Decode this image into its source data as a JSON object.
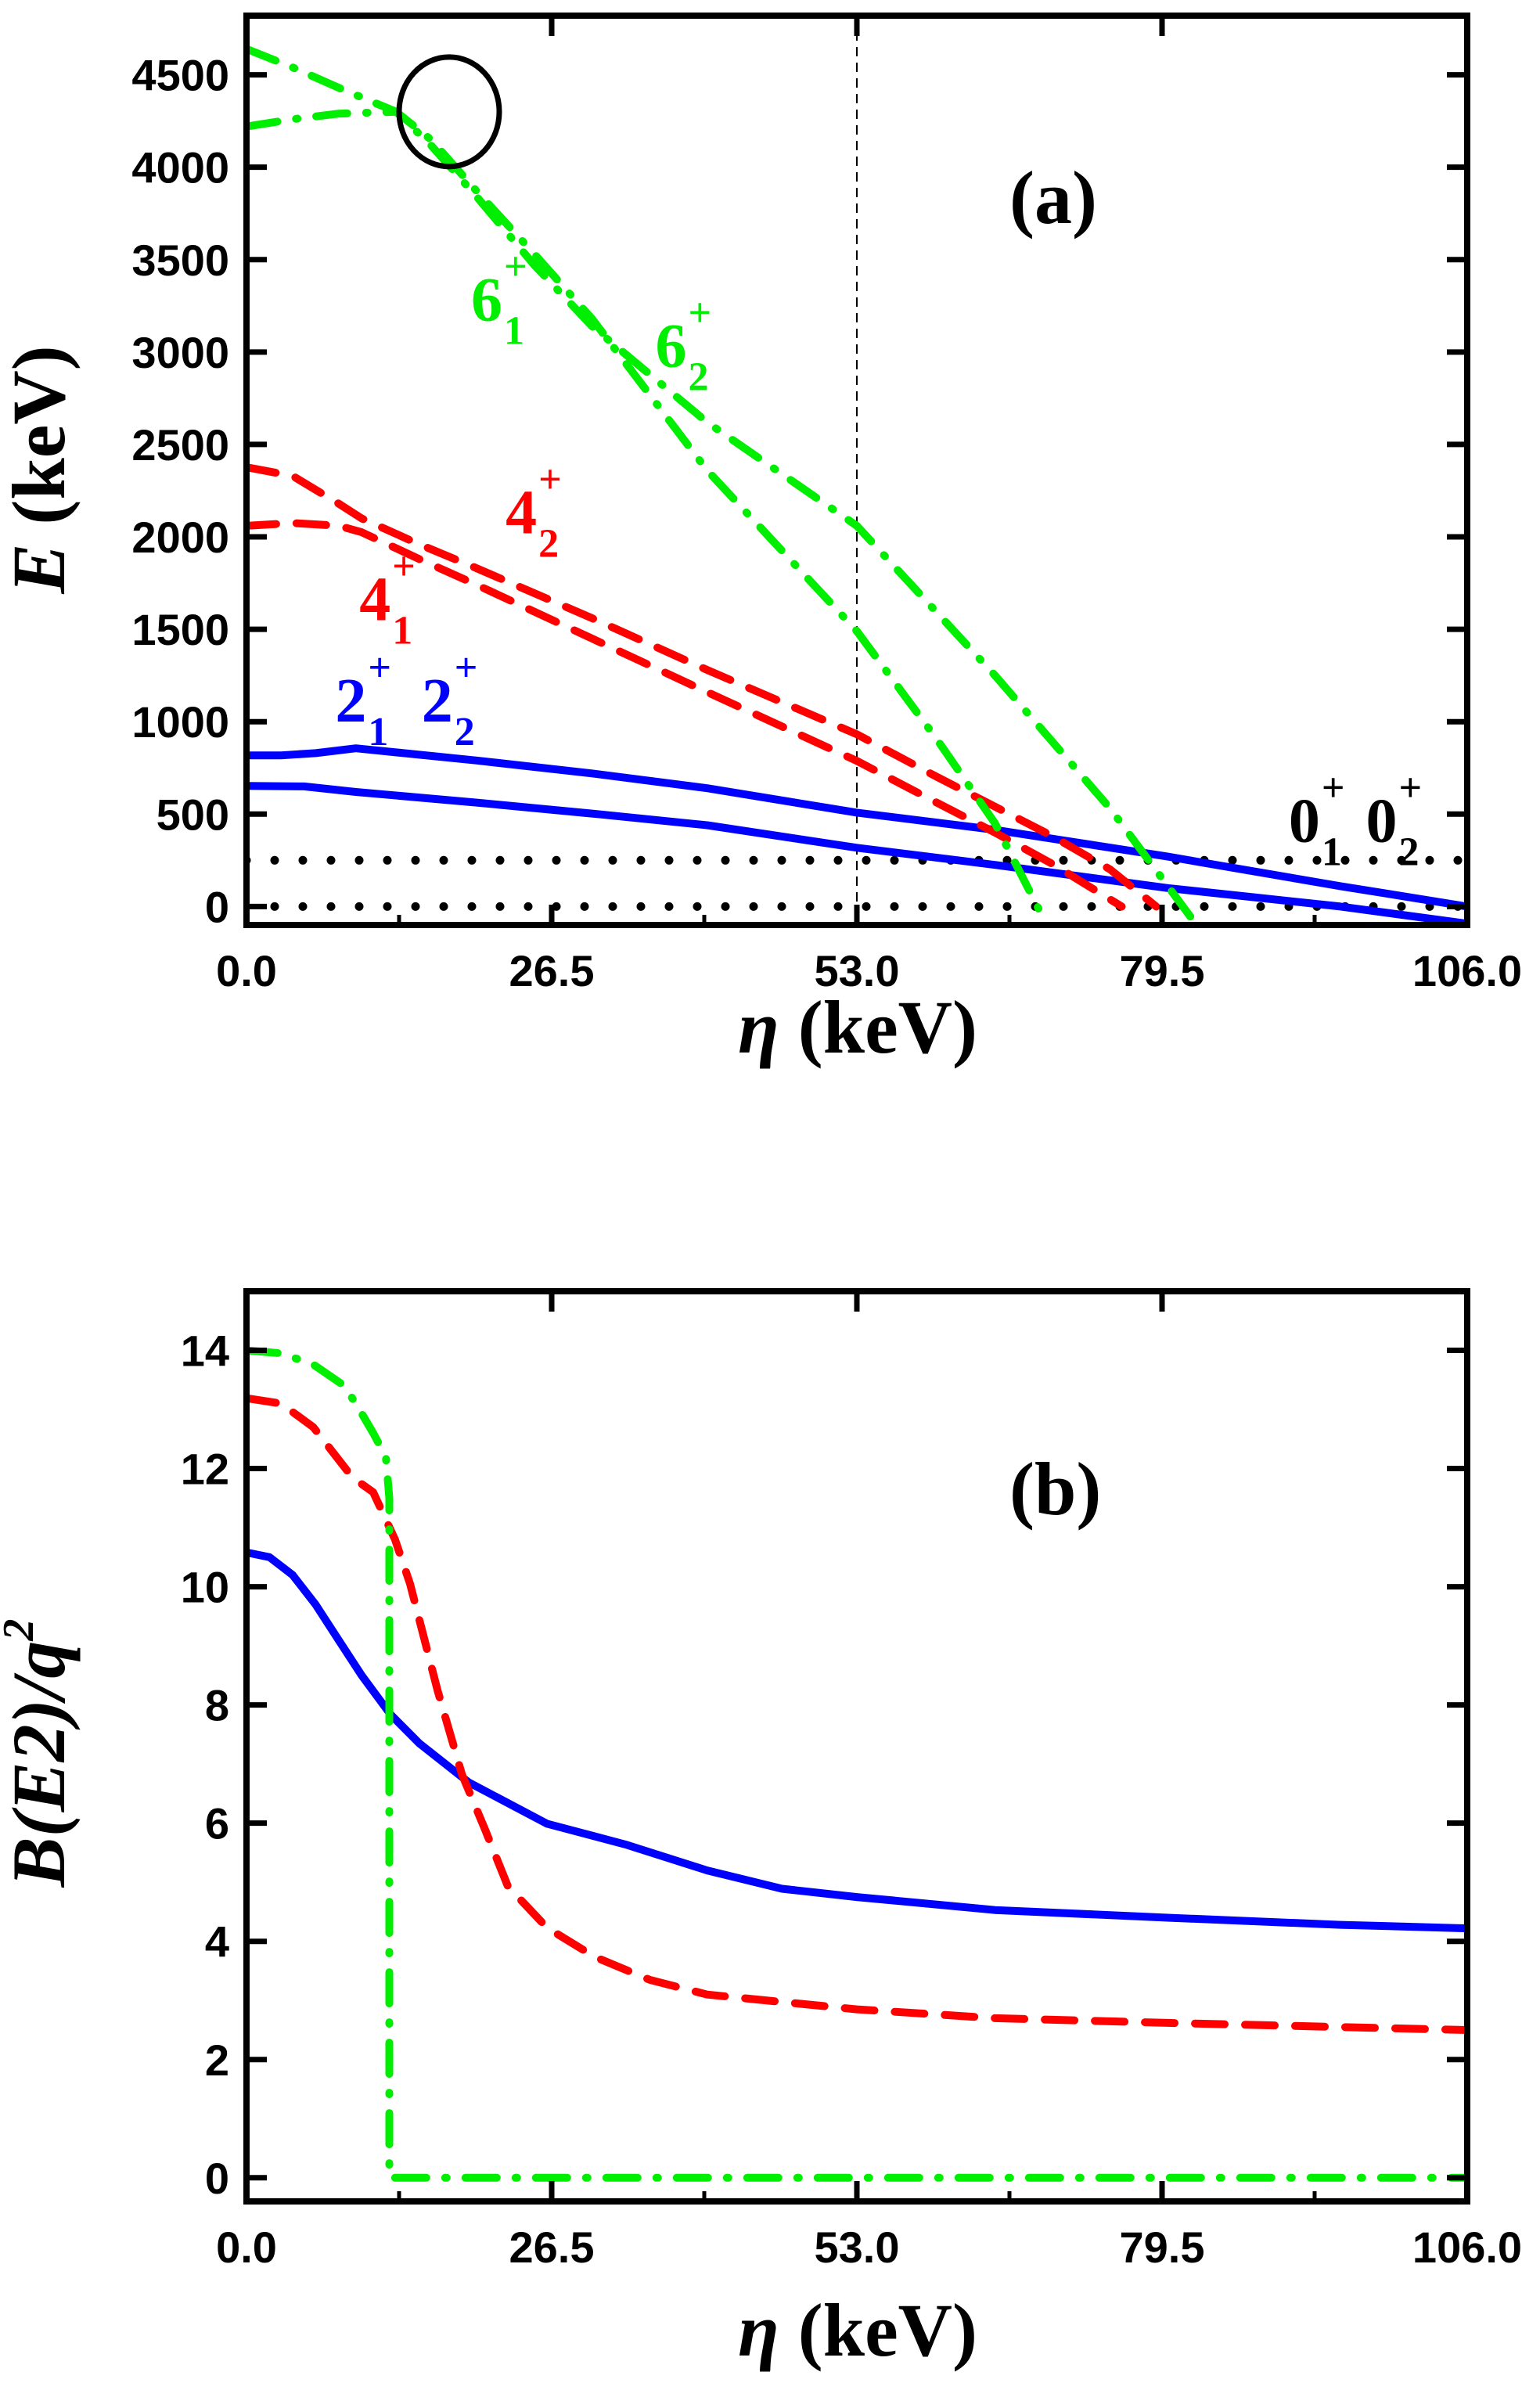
{
  "colors": {
    "blue": "#0000ff",
    "red": "#ff0000",
    "green": "#00ee00",
    "black": "#000000"
  },
  "chart_data": [
    {
      "type": "line",
      "panel_tag": "(a)",
      "title": "",
      "xlabel_symbol": "η",
      "xlabel_unit": "(keV)",
      "ylabel_symbol": "E",
      "ylabel_unit": "(keV)",
      "xlim": [
        0,
        106
      ],
      "ylim": [
        -100,
        4820
      ],
      "xticks": [
        0,
        26.5,
        53,
        79.5,
        106
      ],
      "xtick_labels": [
        "0.0",
        "26.5",
        "53.0",
        "79.5",
        "106.0"
      ],
      "yticks": [
        0,
        500,
        1000,
        1500,
        2000,
        2500,
        3000,
        3500,
        4000,
        4500
      ],
      "ytick_labels": [
        "0",
        "500",
        "1000",
        "1500",
        "2000",
        "2500",
        "3000",
        "3500",
        "4000",
        "4500"
      ],
      "grid": false,
      "vline": {
        "x": 53,
        "style": "dashed"
      },
      "annotation_circle": {
        "x": 17.6,
        "y": 4300
      },
      "series": [
        {
          "name": "0_1+",
          "color_key": "black",
          "style": "dotted",
          "x": [
            0,
            106
          ],
          "y": [
            0,
            0
          ]
        },
        {
          "name": "0_2+",
          "color_key": "black",
          "style": "dotted",
          "x": [
            0,
            106
          ],
          "y": [
            250,
            250
          ]
        },
        {
          "name": "2_1+",
          "color_key": "blue",
          "style": "solid",
          "x": [
            0,
            5,
            9.5,
            20,
            30,
            40,
            53,
            65,
            80,
            95,
            106
          ],
          "y": [
            653,
            650,
            620,
            562,
            503,
            440,
            318,
            225,
            100,
            0,
            -93
          ]
        },
        {
          "name": "2_2+",
          "color_key": "blue",
          "style": "solid",
          "x": [
            0,
            3,
            6,
            9.5,
            20,
            30,
            40,
            53,
            65,
            80,
            95,
            106
          ],
          "y": [
            818,
            818,
            830,
            856,
            790,
            720,
            640,
            508,
            415,
            270,
            110,
            0
          ]
        },
        {
          "name": "4_1+",
          "color_key": "red",
          "style": "dashed",
          "x": [
            0,
            4,
            8,
            10,
            15,
            20,
            30,
            40,
            53,
            60,
            65,
            70,
            76
          ],
          "y": [
            2060,
            2075,
            2060,
            2025,
            1880,
            1740,
            1450,
            1160,
            788,
            560,
            400,
            230,
            0
          ]
        },
        {
          "name": "4_2+",
          "color_key": "red",
          "style": "dashed",
          "x": [
            0,
            4,
            8,
            10,
            15,
            20,
            30,
            40,
            53,
            60,
            65,
            70,
            75,
            79
          ],
          "y": [
            2377,
            2330,
            2180,
            2100,
            1960,
            1830,
            1560,
            1280,
            932,
            700,
            540,
            380,
            200,
            0
          ]
        },
        {
          "name": "6_1+",
          "color_key": "green",
          "style": "dashdot",
          "x": [
            0,
            4,
            8,
            13,
            16,
            20,
            25,
            30,
            40,
            53,
            60,
            65,
            69.5
          ],
          "y": [
            4220,
            4260,
            4290,
            4300,
            4150,
            3870,
            3530,
            3180,
            2360,
            1490,
            900,
            450,
            -100
          ]
        },
        {
          "name": "6_2+",
          "color_key": "green",
          "style": "dashdot",
          "x": [
            0,
            4,
            8,
            13,
            16,
            20,
            25,
            30,
            40,
            53,
            65,
            75,
            82.5
          ],
          "y": [
            4640,
            4540,
            4430,
            4300,
            4120,
            3840,
            3470,
            3140,
            2620,
            2060,
            1250,
            530,
            -100
          ]
        }
      ],
      "labels": [
        {
          "text": "6",
          "sub": "1",
          "sup": "+",
          "color_key": "green",
          "x": 19.5,
          "y": 3170
        },
        {
          "text": "6",
          "sub": "2",
          "sup": "+",
          "color_key": "green",
          "x": 35.5,
          "y": 2920
        },
        {
          "text": "4",
          "sub": "2",
          "sup": "+",
          "color_key": "red",
          "x": 22.5,
          "y": 2020
        },
        {
          "text": "4",
          "sub": "1",
          "sup": "+",
          "color_key": "red",
          "x": 9.8,
          "y": 1550
        },
        {
          "text": "2",
          "sub": "1",
          "sup": "+",
          "color_key": "blue",
          "x": 7.7,
          "y": 1000
        },
        {
          "text": "2",
          "sub": "2",
          "sup": "+",
          "color_key": "blue",
          "x": 15.2,
          "y": 1000
        },
        {
          "text": "0",
          "sub": "1",
          "sup": "+",
          "color_key": "black",
          "x": 90.5,
          "y": 350
        },
        {
          "text": "0",
          "sub": "2",
          "sup": "+",
          "color_key": "black",
          "x": 97.2,
          "y": 350
        }
      ]
    },
    {
      "type": "line",
      "panel_tag": "(b)",
      "title": "",
      "xlabel_symbol": "η",
      "xlabel_unit": "(keV)",
      "ylabel": "B(E2)/q",
      "ylabel_sup": "2",
      "xlim": [
        0,
        106
      ],
      "ylim": [
        -0.4,
        15
      ],
      "xticks": [
        0,
        26.5,
        53,
        79.5,
        106
      ],
      "xtick_labels": [
        "0.0",
        "26.5",
        "53.0",
        "79.5",
        "106.0"
      ],
      "yticks": [
        0,
        2,
        4,
        6,
        8,
        10,
        12,
        14
      ],
      "ytick_labels": [
        "0",
        "2",
        "4",
        "6",
        "8",
        "10",
        "12",
        "14"
      ],
      "grid": false,
      "series": [
        {
          "name": "blue",
          "color_key": "blue",
          "style": "solid",
          "x": [
            0,
            2,
            4,
            6,
            8,
            10,
            12.5,
            15,
            19.3,
            26.1,
            32.9,
            40,
            46.5,
            53,
            65,
            80,
            95,
            106
          ],
          "y": [
            10.58,
            10.5,
            10.2,
            9.7,
            9.1,
            8.5,
            7.84,
            7.35,
            6.69,
            5.99,
            5.64,
            5.2,
            4.89,
            4.75,
            4.53,
            4.4,
            4.28,
            4.22
          ]
        },
        {
          "name": "red",
          "color_key": "red",
          "style": "dashed",
          "x": [
            0,
            3,
            5.8,
            9.2,
            11,
            12.9,
            14.2,
            16.6,
            18.7,
            20.7,
            22.7,
            26.1,
            30.2,
            35,
            40,
            53,
            65,
            80,
            95,
            106
          ],
          "y": [
            13.19,
            13.1,
            12.7,
            11.85,
            11.6,
            10.8,
            10.05,
            8.24,
            6.83,
            5.9,
            4.93,
            4.23,
            3.74,
            3.35,
            3.1,
            2.85,
            2.7,
            2.62,
            2.55,
            2.5
          ]
        },
        {
          "name": "green",
          "color_key": "green",
          "style": "dashdot",
          "x": [
            0,
            3,
            5.8,
            8.5,
            9.8,
            11,
            12.1,
            12.4,
            12.4,
            106
          ],
          "y": [
            14.0,
            13.95,
            13.76,
            13.4,
            13.0,
            12.6,
            12.2,
            11.5,
            0,
            0
          ]
        }
      ]
    }
  ]
}
